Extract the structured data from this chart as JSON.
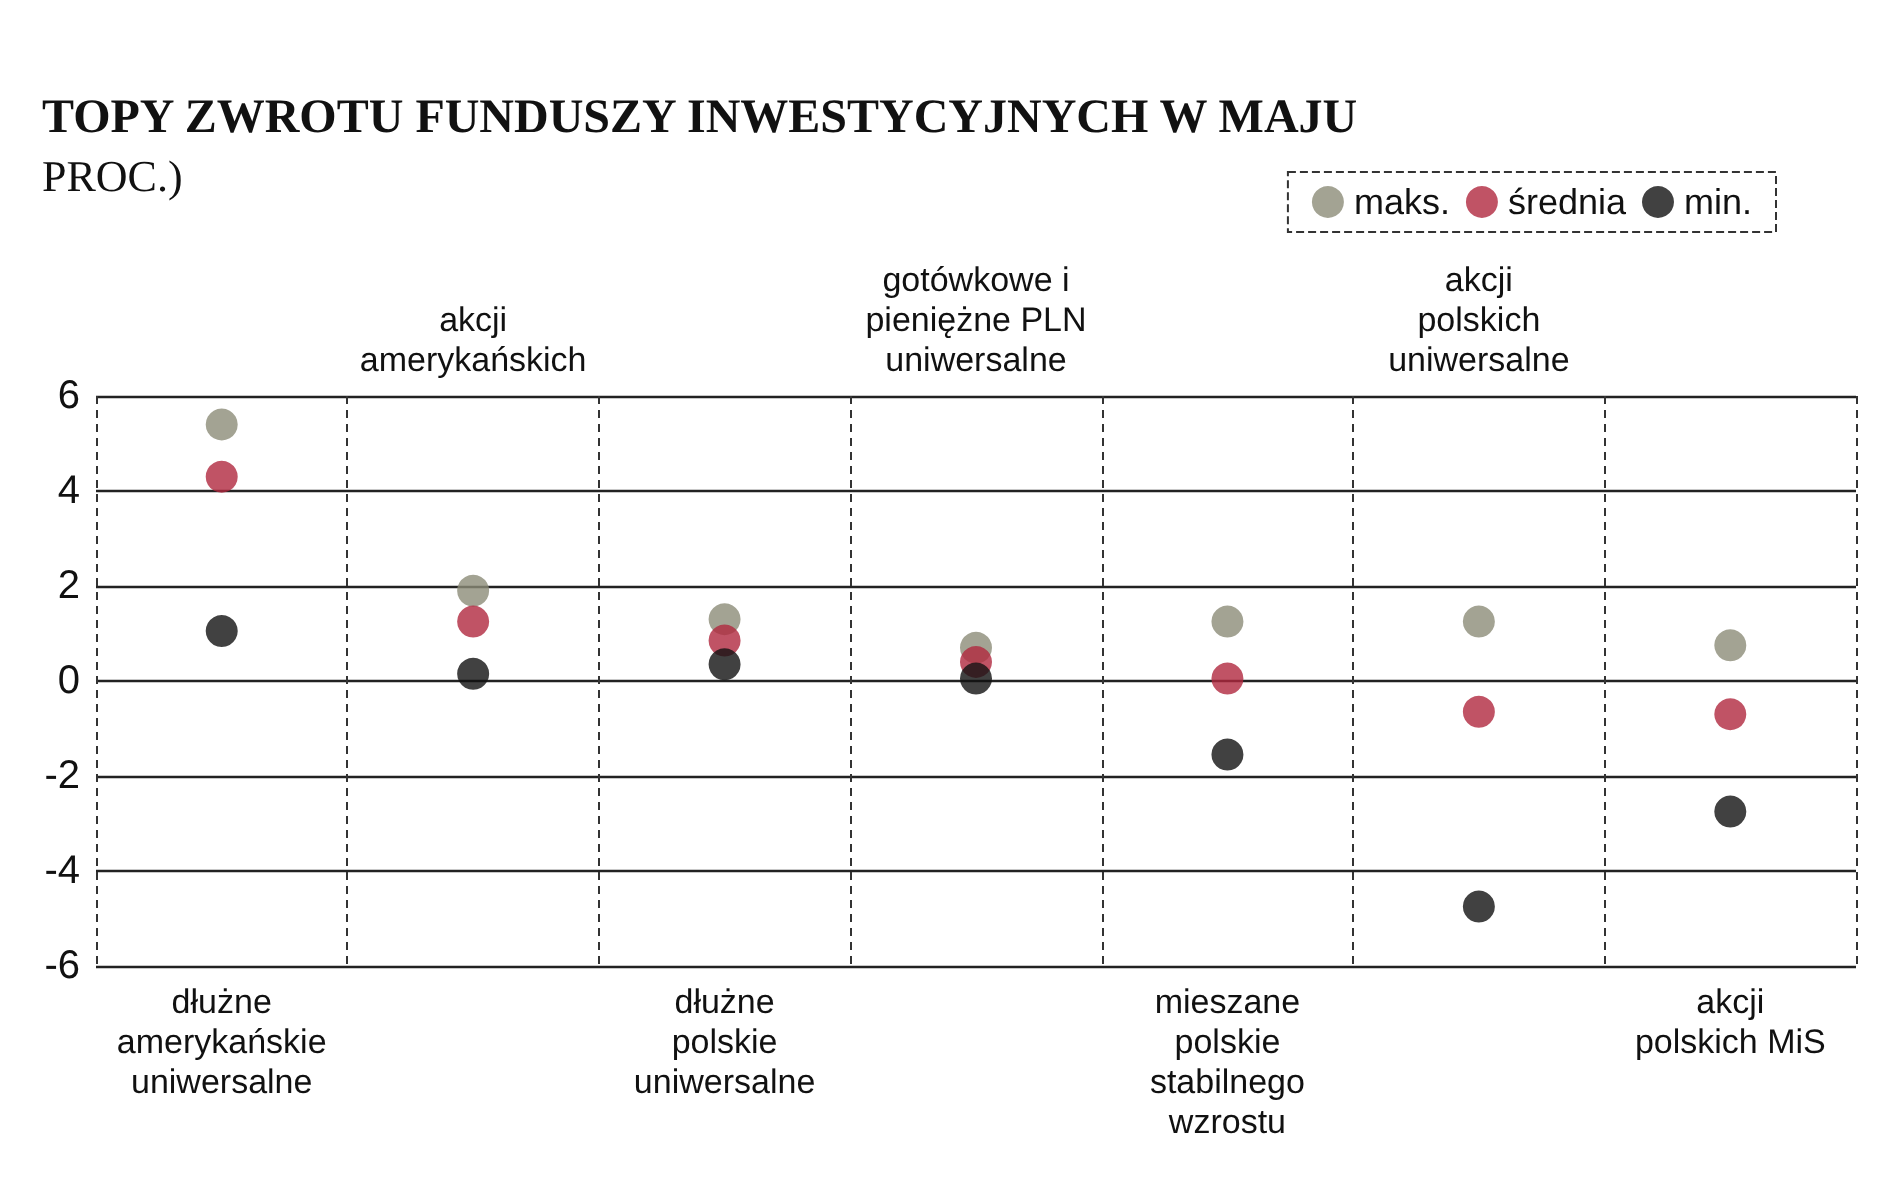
{
  "chart_data": {
    "type": "scatter",
    "title": "TOPY ZWROTU FUNDUSZY INWESTYCYJNYCH W MAJU",
    "subtitle": "PROC.)",
    "categories": [
      "dłużne amerykańskie uniwersalne",
      "akcji amerykańskich",
      "dłużne polskie uniwersalne",
      "gotówkowe i pieniężne PLN uniwersalne",
      "mieszane polskie stabilnego wzrostu",
      "akcji polskich uniwersalne",
      "akcji polskich MiS"
    ],
    "series": [
      {
        "name": "maks.",
        "color": "#8c8c78",
        "values": [
          5.4,
          1.9,
          1.3,
          0.7,
          1.25,
          1.25,
          0.75
        ]
      },
      {
        "name": "średnia",
        "color": "#b0283f",
        "values": [
          4.3,
          1.25,
          0.85,
          0.4,
          0.05,
          -0.65,
          -0.7
        ]
      },
      {
        "name": "min.",
        "color": "#111111",
        "values": [
          1.05,
          0.15,
          0.35,
          0.05,
          -1.55,
          -4.75,
          -2.75
        ]
      }
    ],
    "ylim": [
      -6,
      6
    ],
    "yticks": [
      -6,
      -4,
      -2,
      0,
      2,
      4,
      6
    ],
    "grid": true,
    "legend": "top right",
    "marker": "circle"
  }
}
